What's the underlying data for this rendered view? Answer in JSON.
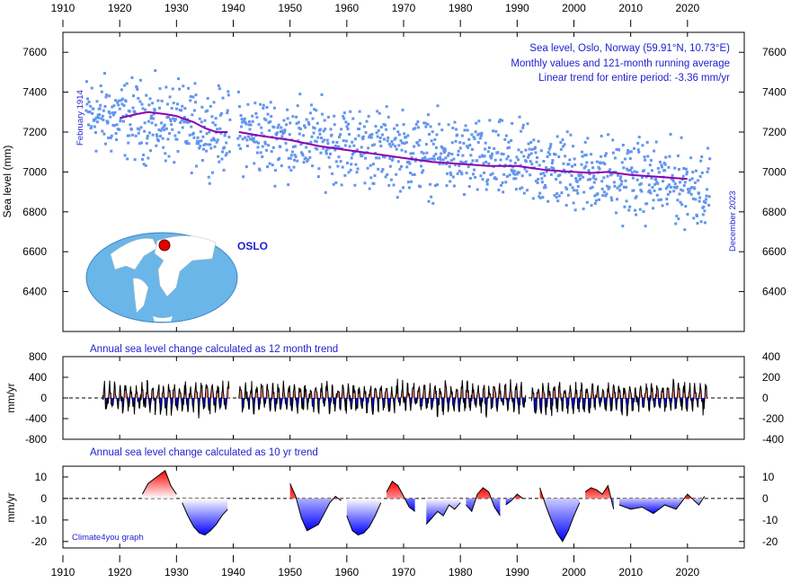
{
  "chart_data": [
    {
      "type": "scatter",
      "annotation_lines": [
        "Sea level, Oslo, Norway (59.91°N, 10.73°E)",
        "Monthly values and 121-month running average",
        "Linear trend for entire period: -3.36 mm/yr"
      ],
      "ylabel": "Sea level (mm)",
      "start_label": "February 1914",
      "end_label": "December 2023",
      "place_label": "OSLO",
      "xlim": [
        1910,
        2030
      ],
      "ylim": [
        6200,
        7700
      ],
      "yticks": [
        6400,
        6600,
        6800,
        7000,
        7200,
        7400,
        7600
      ],
      "xticks": [
        1910,
        1920,
        1930,
        1940,
        1950,
        1960,
        1970,
        1980,
        1990,
        2000,
        2010,
        2020
      ],
      "monthly_color": "#6495ED",
      "running_color": "#8B00B0",
      "running_average": {
        "x": [
          1920,
          1923,
          1925,
          1928,
          1930,
          1933,
          1935,
          1937,
          1939,
          1941,
          1945,
          1950,
          1955,
          1960,
          1965,
          1970,
          1975,
          1980,
          1985,
          1990,
          1995,
          2000,
          2003,
          2006,
          2010,
          2015,
          2020
        ],
        "y": [
          7270,
          7290,
          7300,
          7290,
          7280,
          7250,
          7220,
          7200,
          7200,
          7200,
          7180,
          7160,
          7130,
          7110,
          7090,
          7070,
          7050,
          7040,
          7030,
          7030,
          7010,
          7000,
          6995,
          7000,
          6985,
          6975,
          6965
        ],
        "gap": [
          1939.5,
          1940.8
        ]
      },
      "monthly_trend": {
        "start": 7290,
        "slope": -3.36,
        "noise": 230,
        "gap": [
          1939.5,
          1940.8
        ]
      }
    },
    {
      "type": "area",
      "title": "Annual sea level change calculated as 12 month trend",
      "ylabel": "mm/yr",
      "ylim": [
        -800,
        800
      ],
      "yticks": [
        800,
        400,
        0,
        -400,
        -800
      ],
      "right_yticks": [
        400,
        200,
        0,
        -200,
        -400
      ],
      "xlim": [
        1910,
        2030
      ],
      "positive_color": "#F08080",
      "negative_color": "#0000FF",
      "segments": [
        [
          1917,
          1939.3
        ],
        [
          1941,
          1991.5
        ],
        [
          1992.5,
          2023.5
        ]
      ],
      "amplitude": 300
    },
    {
      "type": "area",
      "title": "Annual sea level change calculated as 10 yr trend",
      "ylabel": "mm/yr",
      "credit": "Climate4you graph",
      "ylim": [
        -23,
        15
      ],
      "yticks": [
        10,
        0,
        -10,
        -20
      ],
      "right_yticks": [
        10,
        0,
        -10,
        -20
      ],
      "xlim": [
        1910,
        2030
      ],
      "positive_color": "#FF0000",
      "negative_color": "#0000FF",
      "series": [
        {
          "x": [
            1924,
            1925,
            1926,
            1927,
            1928,
            1929,
            1930
          ],
          "y": [
            2,
            7,
            9,
            11,
            13,
            6,
            2
          ]
        },
        {
          "x": [
            1931,
            1932,
            1933,
            1934,
            1935,
            1936,
            1937,
            1938,
            1939
          ],
          "y": [
            -2,
            -8,
            -13,
            -16,
            -17,
            -15,
            -12,
            -8,
            -5
          ]
        },
        {
          "x": [
            1950,
            1951,
            1952,
            1953,
            1955,
            1957,
            1958,
            1959
          ],
          "y": [
            7,
            1,
            -9,
            -15,
            -12,
            -2,
            1,
            -1
          ]
        },
        {
          "x": [
            1960,
            1961,
            1962,
            1963,
            1964,
            1965,
            1966
          ],
          "y": [
            -8,
            -15,
            -17,
            -16,
            -13,
            -8,
            -2
          ]
        },
        {
          "x": [
            1967,
            1968,
            1969,
            1970,
            1971,
            1972
          ],
          "y": [
            3,
            8,
            6,
            1,
            -4,
            -6
          ]
        },
        {
          "x": [
            1974,
            1975,
            1976,
            1977,
            1978,
            1979,
            1980
          ],
          "y": [
            -12,
            -9,
            -6,
            -8,
            -3,
            -5,
            -2
          ]
        },
        {
          "x": [
            1981,
            1982,
            1983,
            1984,
            1985,
            1986,
            1987
          ],
          "y": [
            -3,
            -6,
            2,
            5,
            3,
            -4,
            -8
          ]
        },
        {
          "x": [
            1988,
            1989,
            1990,
            1991
          ],
          "y": [
            -3,
            -1,
            2,
            0
          ]
        },
        {
          "x": [
            1994,
            1995,
            1996,
            1997,
            1998,
            1999,
            2000,
            2001
          ],
          "y": [
            5,
            -3,
            -10,
            -16,
            -20,
            -15,
            -8,
            -2
          ]
        },
        {
          "x": [
            2002,
            2003,
            2004,
            2005,
            2006,
            2007
          ],
          "y": [
            3,
            5,
            4,
            2,
            6,
            -5
          ]
        },
        {
          "x": [
            2008,
            2010,
            2012,
            2014,
            2016,
            2018,
            2020,
            2022,
            2023
          ],
          "y": [
            -3,
            -5,
            -4,
            -7,
            -3,
            -5,
            2,
            -3,
            1
          ]
        }
      ]
    }
  ]
}
